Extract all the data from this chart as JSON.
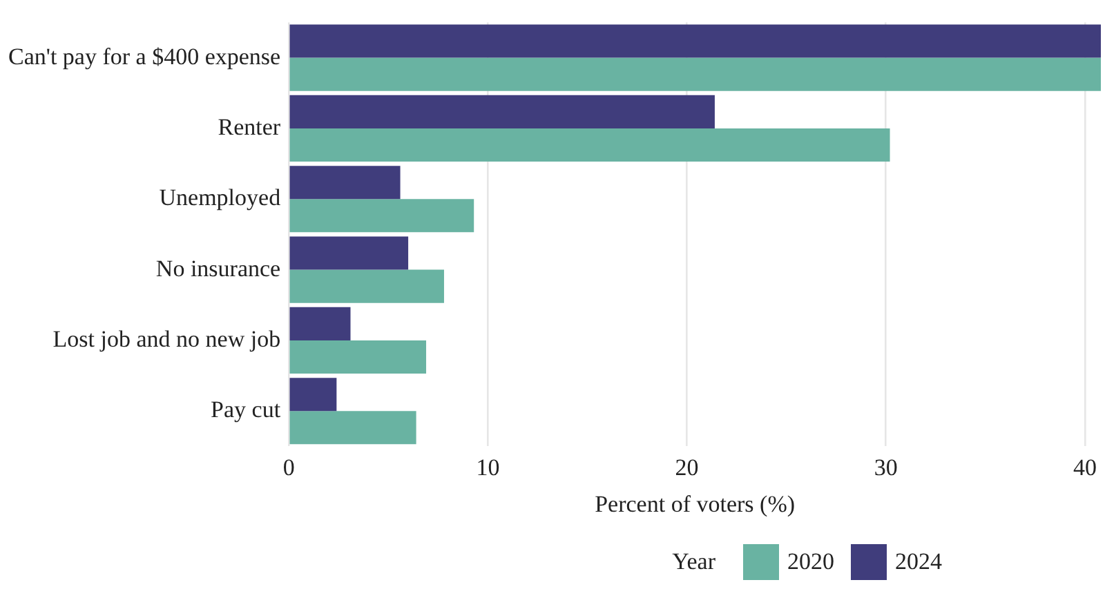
{
  "chart_data": {
    "type": "bar",
    "orientation": "horizontal",
    "xlabel": "Percent of voters (%)",
    "legend_title": "Year",
    "legend": "bottom",
    "grid": "x",
    "categories": [
      "Can't pay for a $400 expense",
      "Renter",
      "Unemployed",
      "No insurance",
      "Lost job and no new job",
      "Pay cut"
    ],
    "series": [
      {
        "name": "2020",
        "color": "#69b3a2",
        "values": [
          40.8,
          30.2,
          9.3,
          7.8,
          6.9,
          6.4
        ]
      },
      {
        "name": "2024",
        "color": "#403d7c",
        "values": [
          40.8,
          21.4,
          5.6,
          6.0,
          3.1,
          2.4
        ]
      }
    ],
    "xlim": [
      0,
      40.8
    ],
    "xticks": [
      0,
      10,
      20,
      30,
      40
    ]
  }
}
